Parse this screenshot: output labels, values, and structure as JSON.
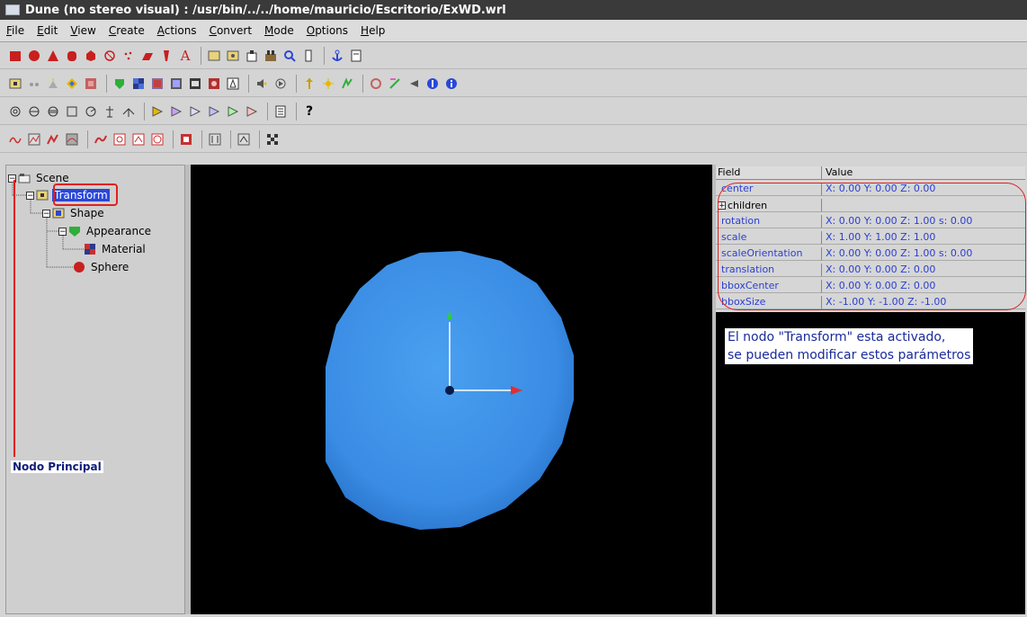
{
  "window": {
    "title": "Dune (no stereo visual) : /usr/bin/../../home/mauricio/Escritorio/ExWD.wrl"
  },
  "menu": [
    {
      "label": "File",
      "ul": "F",
      "rest": "ile"
    },
    {
      "label": "Edit",
      "ul": "E",
      "rest": "dit"
    },
    {
      "label": "View",
      "ul": "V",
      "rest": "iew"
    },
    {
      "label": "Create",
      "ul": "C",
      "rest": "reate"
    },
    {
      "label": "Actions",
      "ul": "A",
      "rest": "ctions"
    },
    {
      "label": "Convert",
      "ul": "C",
      "rest": "onvert"
    },
    {
      "label": "Mode",
      "ul": "M",
      "rest": "ode"
    },
    {
      "label": "Options",
      "ul": "O",
      "rest": "ptions"
    },
    {
      "label": "Help",
      "ul": "H",
      "rest": "elp"
    }
  ],
  "toolbars": {
    "help_glyph": "?",
    "text_glyph": "A"
  },
  "tree": {
    "nodes": [
      {
        "label": "Scene",
        "icon": "scene-icon",
        "expander": "−"
      },
      {
        "label": "Transform",
        "icon": "transform-icon",
        "expander": "−",
        "selected": true
      },
      {
        "label": "Shape",
        "icon": "shape-icon",
        "expander": "−"
      },
      {
        "label": "Appearance",
        "icon": "appearance-icon",
        "expander": "−"
      },
      {
        "label": "Material",
        "icon": "material-icon"
      },
      {
        "label": "Sphere",
        "icon": "sphere-icon"
      }
    ],
    "annotation": "Nodo Principal"
  },
  "fields": {
    "header": {
      "field": "Field",
      "value": "Value"
    },
    "rows": [
      {
        "name": "center",
        "value": "X: 0.00   Y: 0.00   Z: 0.00"
      },
      {
        "name": "children",
        "value": "",
        "expander": "+"
      },
      {
        "name": "rotation",
        "value": "X: 0.00   Y: 0.00   Z: 1.00   s: 0.00"
      },
      {
        "name": "scale",
        "value": "X: 1.00   Y: 1.00   Z: 1.00"
      },
      {
        "name": "scaleOrientation",
        "value": "X: 0.00   Y: 0.00   Z: 1.00   s: 0.00"
      },
      {
        "name": "translation",
        "value": "X: 0.00   Y: 0.00   Z: 0.00"
      },
      {
        "name": "bboxCenter",
        "value": "X: 0.00   Y: 0.00   Z: 0.00"
      },
      {
        "name": "bboxSize",
        "value": "X: -1.00   Y: -1.00   Z: -1.00"
      }
    ]
  },
  "annotation": {
    "line1": "El nodo \"Transform\" esta activado,",
    "line2": "se pueden modificar estos parámetros"
  },
  "colors": {
    "sphere": "#3c8fe6",
    "selection": "#2a47d8",
    "highlight": "#e02020"
  }
}
